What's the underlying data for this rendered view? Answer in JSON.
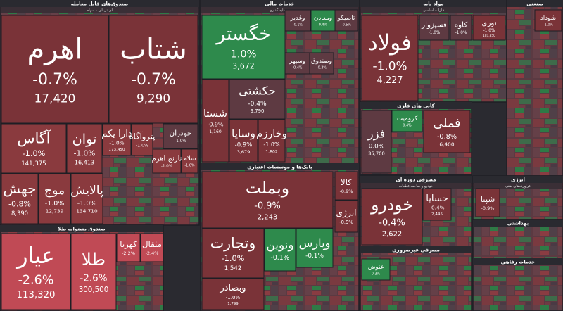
{
  "groups": [
    {
      "title": "صندوق‌های قابل معامله",
      "subtitle": "ای تی اف - سهام",
      "tiles": [
        {
          "label": "اهرم",
          "change": "-0.7%",
          "price": "17,420"
        },
        {
          "label": "شتاب",
          "change": "-0.7%",
          "price": "9,290"
        },
        {
          "label": "آگاس",
          "change": "-1.0%",
          "price": "141,375"
        },
        {
          "label": "توان",
          "change": "-1.0%",
          "price": "16,413"
        },
        {
          "label": "دارا یکم",
          "change": "-1.0%",
          "price": "173,450"
        },
        {
          "label": "پتروآگاه",
          "change": "-1.0%"
        },
        {
          "label": "خودران",
          "change": "-1.0%"
        },
        {
          "label": "جهش",
          "change": "-0.8%",
          "price": "8,390"
        },
        {
          "label": "موج",
          "change": "-1.0%",
          "price": "12,739"
        },
        {
          "label": "پالایش",
          "change": "-1.0%",
          "price": "134,710"
        },
        {
          "label": "سلام",
          "change": "-1.0%"
        },
        {
          "label": "نارنج اهرم",
          "change": "-1.0%"
        }
      ]
    },
    {
      "title": "صندوق پشتوانه طلا",
      "tiles": [
        {
          "label": "عیار",
          "change": "-2.6%",
          "price": "113,320"
        },
        {
          "label": "طلا",
          "change": "-2.6%",
          "price": "300,500"
        },
        {
          "label": "کهربا",
          "change": "-2.2%"
        },
        {
          "label": "مثقال",
          "change": "-2.4%"
        }
      ]
    },
    {
      "title": "خدمات مالی",
      "subtitle": "سرمایه گذاری",
      "tiles": [
        {
          "label": "خگستر",
          "change": "1.0%",
          "price": "3,672"
        },
        {
          "label": "حکشتی",
          "change": "-0.4%",
          "price": "9,790"
        },
        {
          "label": "شستا",
          "change": "-0.9%",
          "price": "1,160"
        },
        {
          "label": "وسایا",
          "change": "-0.9%",
          "price": "3,679"
        },
        {
          "label": "وخارزم",
          "change": "-1.0%",
          "price": "1,802"
        },
        {
          "label": "وغدیر",
          "change": "-0.1%"
        },
        {
          "label": "ومعادن",
          "change": "0.4%"
        },
        {
          "label": "تاصیکو",
          "change": "-0.5%"
        },
        {
          "label": "وسپهر",
          "change": "-0.4%"
        },
        {
          "label": "وصندوق",
          "change": "-0.3%"
        }
      ]
    },
    {
      "title": "بانک‌ها و موسسات اعتباری",
      "tiles": [
        {
          "label": "وبملت",
          "change": "-0.9%",
          "price": "2,243"
        },
        {
          "label": "وتجارت",
          "change": "-1.0%",
          "price": "1,542"
        },
        {
          "label": "وبصادر",
          "change": "-1.0%",
          "price": "1,799"
        },
        {
          "label": "ونوین",
          "change": "-0.1%"
        },
        {
          "label": "وپارس",
          "change": "-0.1%"
        },
        {
          "label": "کالا",
          "change": "-0.9%"
        },
        {
          "label": "انرژی",
          "change": "-0.9%"
        }
      ]
    },
    {
      "title": "مواد پایه",
      "subtitle": "فلزات اساسی",
      "tiles": [
        {
          "label": "فولاد",
          "change": "-1.0%",
          "price": "4,227"
        },
        {
          "label": "فسپزوار",
          "change": "-1.0%"
        },
        {
          "label": "کاوه",
          "change": "-1.0%"
        },
        {
          "label": "نوری",
          "change": "-1.0%",
          "price": "181,850"
        }
      ]
    },
    {
      "title": "صنعتی",
      "tiles": [
        {
          "label": "شوداد",
          "change": "-1.0%"
        }
      ]
    },
    {
      "title": "کانی های فلزی",
      "tiles": [
        {
          "label": "فزر",
          "change": "0.0%",
          "price": "35,700"
        },
        {
          "label": "کرومیت",
          "change": "0.4%"
        },
        {
          "label": "فملی",
          "change": "-0.8%",
          "price": "6,400"
        }
      ]
    },
    {
      "title": "مصرفی دوره ای",
      "subtitle": "خودرو و ساخت قطعات",
      "tiles": [
        {
          "label": "خودرو",
          "change": "-0.4%",
          "price": "2,622"
        },
        {
          "label": "خساپا",
          "change": "-0.4%",
          "price": "2,445"
        }
      ]
    },
    {
      "title": "مصرفی غیرضروری",
      "tiles": [
        {
          "label": "غنوش",
          "change": "0.3%"
        }
      ]
    },
    {
      "title": "انرژی",
      "subtitle": "فراورده‌های نفتی",
      "tiles": [
        {
          "label": "شپنا",
          "change": "-0.9%"
        }
      ]
    },
    {
      "title": "بهداشتی",
      "tiles": []
    },
    {
      "title": "خدمات رفاهی",
      "tiles": []
    }
  ]
}
